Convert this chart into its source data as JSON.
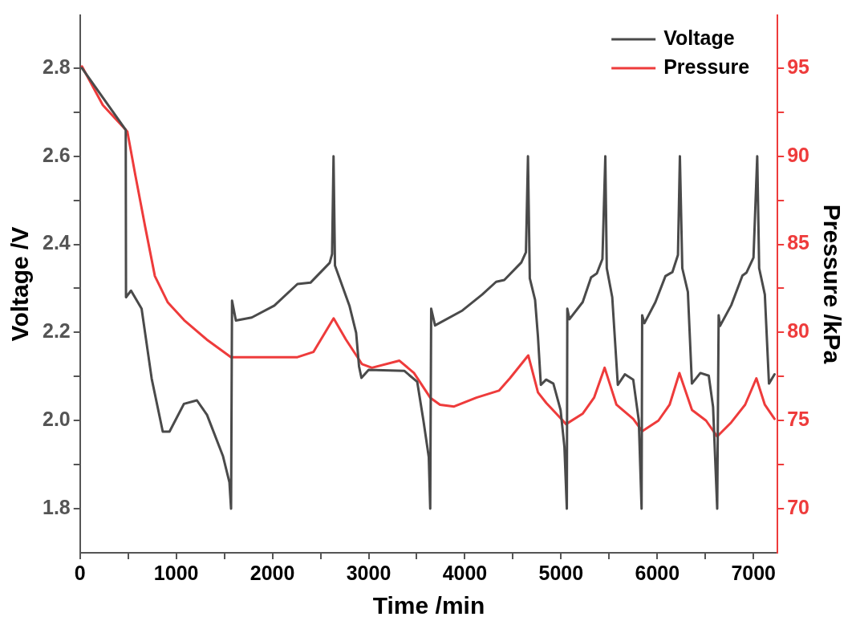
{
  "chart_data": {
    "type": "line",
    "xlabel": "Time /min",
    "ylabel": "Voltage /V",
    "y2label": "Pressure /kPa",
    "xlim": [
      0,
      7250
    ],
    "xticks": [
      0,
      {
        "value": 500,
        "label": null
      },
      1000,
      {
        "value": 1500,
        "label": null
      },
      2000,
      {
        "value": 2500,
        "label": null
      },
      3000,
      {
        "value": 3500,
        "label": null
      },
      4000,
      {
        "value": 4500,
        "label": null
      },
      5000,
      {
        "value": 5500,
        "label": null
      },
      6000,
      {
        "value": 6500,
        "label": null
      },
      7000
    ],
    "ylim": [
      1.7,
      2.92
    ],
    "yticks": [
      {
        "value": 1.8,
        "label": "1.8"
      },
      {
        "value": 1.9,
        "label": null
      },
      {
        "value": 2.0,
        "label": "2.0"
      },
      {
        "value": 2.1,
        "label": null
      },
      {
        "value": 2.2,
        "label": "2.2"
      },
      {
        "value": 2.3,
        "label": null
      },
      {
        "value": 2.4,
        "label": "2.4"
      },
      {
        "value": 2.5,
        "label": null
      },
      {
        "value": 2.6,
        "label": "2.6"
      },
      {
        "value": 2.7,
        "label": null
      },
      {
        "value": 2.8,
        "label": "2.8"
      }
    ],
    "y2lim": [
      67.5,
      98
    ],
    "y2ticks": [
      70,
      {
        "value": 72.5,
        "label": null
      },
      75,
      {
        "value": 77.5,
        "label": null
      },
      80,
      {
        "value": 82.5,
        "label": null
      },
      85,
      {
        "value": 87.5,
        "label": null
      },
      90,
      {
        "value": 92.5,
        "label": null
      },
      95
    ],
    "grid": false,
    "legend": "top right",
    "marker": "none",
    "line_style": "solid",
    "series": [
      {
        "name": "Voltage",
        "color": "#4a4a4a",
        "axis": "y",
        "x": [
          20,
          475,
          478,
          530,
          640,
          745,
          860,
          930,
          1080,
          1215,
          1320,
          1485,
          1553,
          1570,
          1580,
          1620,
          1785,
          2020,
          2260,
          2395,
          2595,
          2620,
          2635,
          2650,
          2800,
          2870,
          2900,
          2925,
          3000,
          3370,
          3505,
          3570,
          3625,
          3640,
          3650,
          3690,
          3975,
          4180,
          4325,
          4410,
          4587,
          4635,
          4656,
          4675,
          4730,
          4760,
          4790,
          4845,
          4920,
          4995,
          5035,
          5060,
          5065,
          5087,
          5225,
          5312,
          5372,
          5430,
          5460,
          5475,
          5532,
          5590,
          5663,
          5750,
          5808,
          5837,
          5843,
          5866,
          5981,
          6085,
          6157,
          6215,
          6235,
          6260,
          6318,
          6360,
          6448,
          6535,
          6580,
          6623,
          6638,
          6652,
          6769,
          6885,
          6928,
          7000,
          7039,
          7059,
          7118,
          7161,
          7219
        ],
        "values": [
          2.8,
          2.66,
          2.28,
          2.295,
          2.254,
          2.095,
          1.975,
          1.975,
          2.038,
          2.046,
          2.013,
          1.92,
          1.86,
          1.8,
          2.272,
          2.227,
          2.234,
          2.261,
          2.31,
          2.313,
          2.358,
          2.378,
          2.6,
          2.352,
          2.261,
          2.199,
          2.123,
          2.097,
          2.115,
          2.113,
          2.088,
          1.999,
          1.917,
          1.8,
          2.254,
          2.216,
          2.25,
          2.286,
          2.315,
          2.319,
          2.359,
          2.382,
          2.6,
          2.323,
          2.274,
          2.19,
          2.081,
          2.093,
          2.084,
          2.024,
          1.94,
          1.8,
          2.254,
          2.23,
          2.269,
          2.325,
          2.334,
          2.367,
          2.6,
          2.346,
          2.28,
          2.081,
          2.105,
          2.093,
          2.0,
          1.8,
          2.239,
          2.221,
          2.269,
          2.328,
          2.337,
          2.376,
          2.6,
          2.346,
          2.292,
          2.084,
          2.108,
          2.102,
          2.031,
          1.8,
          2.239,
          2.215,
          2.262,
          2.329,
          2.336,
          2.37,
          2.6,
          2.346,
          2.286,
          2.084,
          2.105
        ]
      },
      {
        "name": "Pressure",
        "color": "#ee3b3b",
        "axis": "y2",
        "x": [
          20,
          237,
          492,
          576,
          677,
          778,
          913,
          1082,
          1317,
          1569,
          1923,
          2260,
          2427,
          2636,
          2764,
          2932,
          3034,
          3320,
          3471,
          3640,
          3742,
          3888,
          4120,
          4354,
          4468,
          4659,
          4760,
          4846,
          4950,
          5052,
          5226,
          5343,
          5453,
          5576,
          5750,
          5843,
          6012,
          6128,
          6230,
          6361,
          6507,
          6623,
          6769,
          6913,
          7030,
          7118,
          7219
        ],
        "values": [
          95.1,
          92.9,
          91.4,
          88.9,
          86.0,
          83.2,
          81.7,
          80.7,
          79.6,
          78.6,
          78.6,
          78.6,
          78.9,
          80.8,
          79.6,
          78.2,
          78.0,
          78.4,
          77.7,
          76.3,
          75.9,
          75.8,
          76.3,
          76.7,
          77.4,
          78.7,
          76.6,
          76.0,
          75.4,
          74.8,
          75.4,
          76.3,
          78.0,
          75.9,
          75.1,
          74.4,
          75.0,
          75.9,
          77.7,
          75.6,
          75.0,
          74.1,
          74.9,
          75.9,
          77.4,
          75.9,
          75.1
        ]
      }
    ]
  }
}
